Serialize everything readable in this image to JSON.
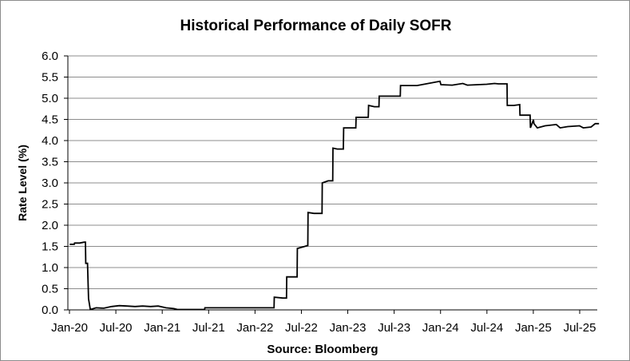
{
  "chart_data": {
    "type": "line",
    "title": "Historical Performance of Daily SOFR",
    "xlabel": "Source: Bloomberg",
    "ylabel": "Rate Level (%)",
    "ylim": [
      0,
      6
    ],
    "y_ticks": [
      "0.0",
      "0.5",
      "1.0",
      "1.5",
      "2.0",
      "2.5",
      "3.0",
      "3.5",
      "4.0",
      "4.5",
      "5.0",
      "5.5",
      "6.0"
    ],
    "x_ticks": [
      "Jan-20",
      "Jul-20",
      "Jan-21",
      "Jul-21",
      "Jan-22",
      "Jul-22",
      "Jan-23",
      "Jul-23",
      "Jan-24",
      "Jul-24",
      "Jan-25",
      "Jul-25"
    ],
    "grid": "horizontal",
    "line_color": "#000000",
    "series": [
      {
        "x": [
          "2020-01-02",
          "2020-01-20",
          "2020-01-21",
          "2020-02-10",
          "2020-02-28",
          "2020-03-04",
          "2020-03-05",
          "2020-03-12",
          "2020-03-16",
          "2020-03-23",
          "2020-04-15",
          "2020-05-15",
          "2020-06-15",
          "2020-07-15",
          "2020-08-15",
          "2020-09-15",
          "2020-10-15",
          "2020-11-15",
          "2020-12-15",
          "2021-01-15",
          "2021-02-15",
          "2021-03-01",
          "2021-04-01",
          "2021-05-01",
          "2021-06-16",
          "2021-06-17",
          "2021-09-01",
          "2021-12-01",
          "2022-03-16",
          "2022-03-17",
          "2022-04-20",
          "2022-05-04",
          "2022-05-05",
          "2022-06-15",
          "2022-06-16",
          "2022-07-27",
          "2022-07-28",
          "2022-08-20",
          "2022-09-21",
          "2022-09-22",
          "2022-10-15",
          "2022-11-02",
          "2022-11-03",
          "2022-11-20",
          "2022-12-14",
          "2022-12-15",
          "2023-01-15",
          "2023-02-01",
          "2023-02-02",
          "2023-03-22",
          "2023-03-23",
          "2023-04-15",
          "2023-05-03",
          "2023-05-04",
          "2023-06-15",
          "2023-07-26",
          "2023-07-27",
          "2023-09-30",
          "2023-12-29",
          "2024-01-02",
          "2024-02-15",
          "2024-03-28",
          "2024-04-15",
          "2024-06-30",
          "2024-07-31",
          "2024-08-15",
          "2024-09-18",
          "2024-09-19",
          "2024-10-15",
          "2024-11-07",
          "2024-11-08",
          "2024-12-18",
          "2024-12-19",
          "2024-12-31",
          "2025-01-02",
          "2025-01-15",
          "2025-02-15",
          "2025-03-31",
          "2025-04-15",
          "2025-05-15",
          "2025-06-30",
          "2025-07-15",
          "2025-08-15",
          "2025-08-31",
          "2025-09-15"
        ],
        "y": [
          1.55,
          1.55,
          1.58,
          1.58,
          1.6,
          1.6,
          1.1,
          1.1,
          0.26,
          0.01,
          0.05,
          0.04,
          0.08,
          0.1,
          0.09,
          0.08,
          0.09,
          0.08,
          0.09,
          0.05,
          0.03,
          0.01,
          0.01,
          0.01,
          0.01,
          0.05,
          0.05,
          0.05,
          0.05,
          0.3,
          0.28,
          0.28,
          0.78,
          0.78,
          1.45,
          1.52,
          2.3,
          2.28,
          2.28,
          3.0,
          3.05,
          3.05,
          3.82,
          3.8,
          3.8,
          4.3,
          4.3,
          4.3,
          4.55,
          4.55,
          4.83,
          4.8,
          4.8,
          5.05,
          5.05,
          5.05,
          5.3,
          5.3,
          5.4,
          5.32,
          5.31,
          5.35,
          5.31,
          5.33,
          5.35,
          5.34,
          5.34,
          4.83,
          4.83,
          4.85,
          4.6,
          4.6,
          4.3,
          4.49,
          4.4,
          4.3,
          4.35,
          4.38,
          4.3,
          4.33,
          4.35,
          4.3,
          4.32,
          4.4,
          4.4
        ]
      }
    ]
  }
}
